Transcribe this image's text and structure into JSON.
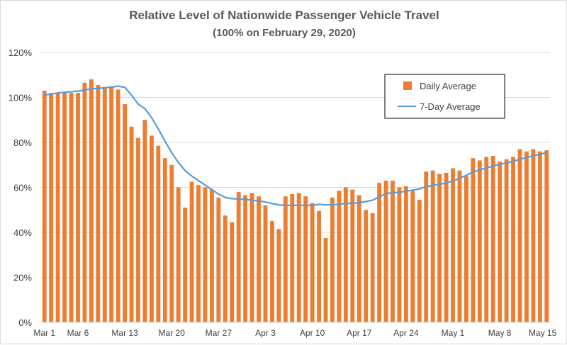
{
  "chart_data": {
    "type": "bar",
    "title": "Relative Level of Nationwide Passenger Vehicle Travel",
    "subtitle": "(100% on February 29, 2020)",
    "xlabel": "",
    "ylabel": "",
    "ylim": [
      0,
      120
    ],
    "y_ticks": [
      "0%",
      "20%",
      "40%",
      "60%",
      "80%",
      "100%",
      "120%"
    ],
    "grid": true,
    "legend_position": "top-right",
    "categories": [
      "Mar 1",
      "Mar 2",
      "Mar 3",
      "Mar 4",
      "Mar 5",
      "Mar 6",
      "Mar 7",
      "Mar 8",
      "Mar 9",
      "Mar 10",
      "Mar 11",
      "Mar 12",
      "Mar 13",
      "Mar 14",
      "Mar 15",
      "Mar 16",
      "Mar 17",
      "Mar 18",
      "Mar 19",
      "Mar 20",
      "Mar 21",
      "Mar 22",
      "Mar 23",
      "Mar 24",
      "Mar 25",
      "Mar 26",
      "Mar 27",
      "Mar 28",
      "Mar 29",
      "Mar 30",
      "Mar 31",
      "Apr 1",
      "Apr 2",
      "Apr 3",
      "Apr 4",
      "Apr 5",
      "Apr 6",
      "Apr 7",
      "Apr 8",
      "Apr 9",
      "Apr 10",
      "Apr 11",
      "Apr 12",
      "Apr 13",
      "Apr 14",
      "Apr 15",
      "Apr 16",
      "Apr 17",
      "Apr 18",
      "Apr 19",
      "Apr 20",
      "Apr 21",
      "Apr 22",
      "Apr 23",
      "Apr 24",
      "Apr 25",
      "Apr 26",
      "Apr 27",
      "Apr 28",
      "Apr 29",
      "Apr 30",
      "May 1",
      "May 2",
      "May 3",
      "May 4",
      "May 5",
      "May 6",
      "May 7",
      "May 8",
      "May 9",
      "May 10",
      "May 11",
      "May 12",
      "May 13",
      "May 14",
      "May 15"
    ],
    "x_tick_labels": [
      {
        "index": 0,
        "label": "Mar 1"
      },
      {
        "index": 5,
        "label": "Mar 6"
      },
      {
        "index": 12,
        "label": "Mar 13"
      },
      {
        "index": 19,
        "label": "Mar 20"
      },
      {
        "index": 26,
        "label": "Mar 27"
      },
      {
        "index": 33,
        "label": "Apr 3"
      },
      {
        "index": 40,
        "label": "Apr 10"
      },
      {
        "index": 47,
        "label": "Apr 17"
      },
      {
        "index": 54,
        "label": "Apr 24"
      },
      {
        "index": 61,
        "label": "May 1"
      },
      {
        "index": 68,
        "label": "May 8"
      },
      {
        "index": 75,
        "label": "May 15"
      }
    ],
    "series": [
      {
        "name": "Daily Average",
        "type": "bar",
        "color": "#ED7D31",
        "values": [
          103,
          102,
          102,
          102.5,
          102,
          102,
          106.5,
          108,
          105.5,
          104.5,
          105,
          103.5,
          97,
          87,
          82,
          90,
          83,
          78.5,
          73,
          70,
          60,
          51,
          62.5,
          61,
          60,
          59,
          55.5,
          47.5,
          44.5,
          58,
          56.5,
          57.5,
          56,
          52,
          45,
          41.5,
          56,
          57,
          57.5,
          56,
          53,
          49.5,
          37.5,
          55.5,
          58.5,
          60,
          59,
          56.5,
          50,
          48.5,
          62,
          63,
          63,
          60,
          60.5,
          58.5,
          54.5,
          67,
          67.5,
          66,
          66.5,
          68.5,
          67.5,
          65,
          73,
          72,
          73.5,
          74,
          71.5,
          72.5,
          73.5,
          77,
          76,
          77,
          76,
          76.5
        ]
      },
      {
        "name": "7-Day Average",
        "type": "line",
        "color": "#5B9BD5",
        "values": [
          101,
          101.5,
          102,
          102.3,
          102.5,
          102.8,
          103.3,
          103.8,
          104,
          104.3,
          104.5,
          105,
          104.5,
          101,
          97,
          95,
          91,
          86,
          80.5,
          75.5,
          71,
          67.5,
          65,
          63,
          61,
          59,
          57,
          55.5,
          55,
          54.8,
          54.6,
          54.3,
          54,
          53.5,
          52.8,
          52.2,
          52,
          52,
          52,
          52,
          52,
          52.5,
          52.2,
          52.3,
          52.5,
          52.8,
          53,
          53.2,
          53.7,
          54.3,
          55.8,
          57.3,
          57.6,
          57.8,
          58.3,
          58.8,
          59.3,
          60.3,
          61,
          61.3,
          62,
          62.8,
          64,
          65.4,
          66.8,
          67.8,
          68.6,
          69.5,
          70.3,
          70.8,
          71.6,
          72.5,
          73.3,
          74,
          74.7,
          75.5
        ]
      }
    ]
  }
}
